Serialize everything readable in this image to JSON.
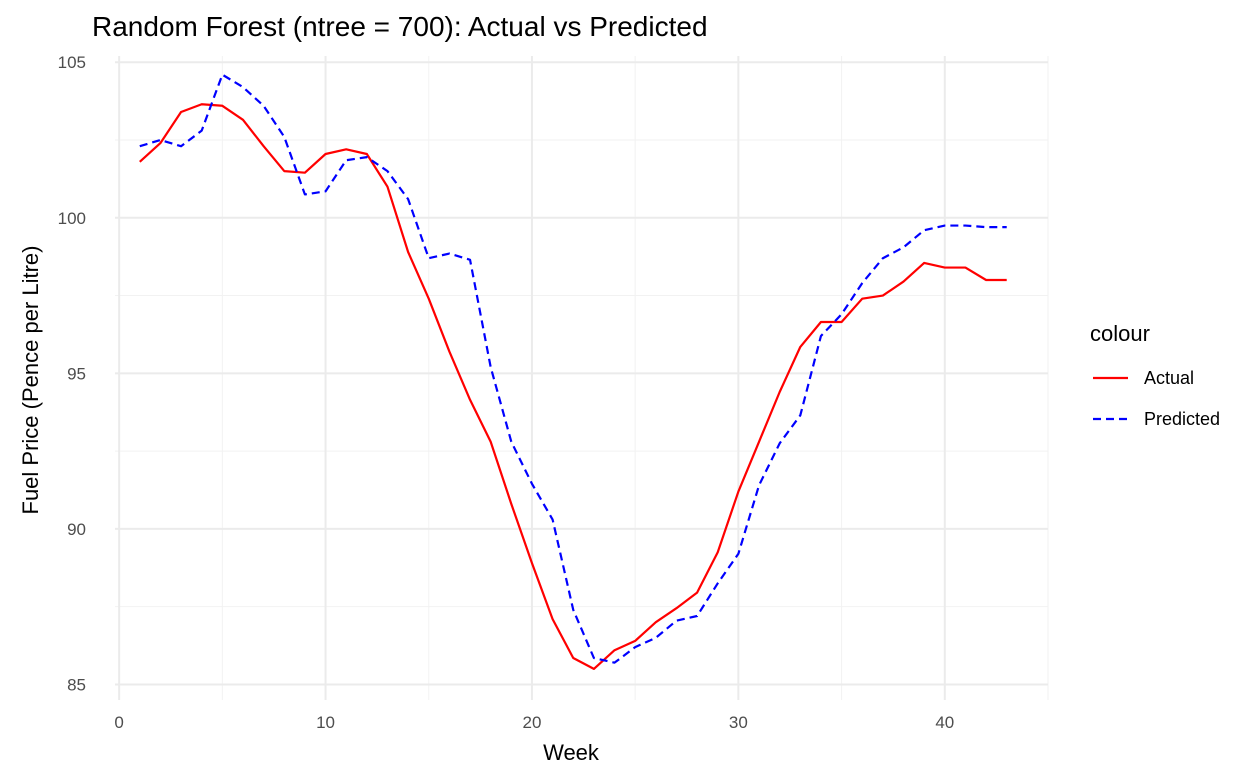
{
  "chart_data": {
    "type": "line",
    "title": "Random Forest (ntree = 700): Actual vs Predicted",
    "xlabel": "Week",
    "ylabel": "Fuel Price (Pence per Litre)",
    "xlim": [
      -0.2,
      45
    ],
    "ylim": [
      84.5,
      105.2
    ],
    "x_ticks": [
      0,
      10,
      20,
      30,
      40
    ],
    "x_tick_labels": [
      "0",
      "10",
      "20",
      "30",
      "40"
    ],
    "y_ticks": [
      85,
      90,
      95,
      100,
      105
    ],
    "y_tick_labels": [
      "85",
      "90",
      "95",
      "100",
      "105"
    ],
    "grid": true,
    "legend": {
      "title": "colour",
      "position": "right"
    },
    "x": [
      1,
      2,
      3,
      4,
      5,
      6,
      7,
      8,
      9,
      10,
      11,
      12,
      13,
      14,
      15,
      16,
      17,
      18,
      19,
      20,
      21,
      22,
      23,
      24,
      25,
      26,
      27,
      28,
      29,
      30,
      31,
      32,
      33,
      34,
      35,
      36,
      37,
      38,
      39,
      40,
      41,
      42,
      43
    ],
    "series": [
      {
        "name": "Actual",
        "color": "#ff0000",
        "dash": "solid",
        "values": [
          101.8,
          102.4,
          103.4,
          103.65,
          103.6,
          103.15,
          102.3,
          101.5,
          101.45,
          102.05,
          102.2,
          102.05,
          101.0,
          98.9,
          97.4,
          95.7,
          94.15,
          92.8,
          90.8,
          88.9,
          87.1,
          85.85,
          85.5,
          86.1,
          86.4,
          87.0,
          87.45,
          87.95,
          89.25,
          91.2,
          92.8,
          94.4,
          95.85,
          96.65,
          96.65,
          97.4,
          97.5,
          97.95,
          98.55,
          98.4,
          98.4,
          98.0,
          98.0
        ]
      },
      {
        "name": "Predicted",
        "color": "#0000ff",
        "dash": "dashed",
        "values": [
          102.3,
          102.5,
          102.3,
          102.8,
          104.6,
          104.2,
          103.6,
          102.6,
          100.75,
          100.85,
          101.85,
          101.95,
          101.5,
          100.6,
          98.7,
          98.85,
          98.65,
          95.2,
          92.8,
          91.45,
          90.3,
          87.4,
          85.85,
          85.7,
          86.2,
          86.5,
          87.05,
          87.2,
          88.25,
          89.2,
          91.4,
          92.75,
          93.65,
          96.2,
          96.9,
          97.9,
          98.7,
          99.05,
          99.6,
          99.75,
          99.75,
          99.7,
          99.7
        ]
      }
    ]
  }
}
